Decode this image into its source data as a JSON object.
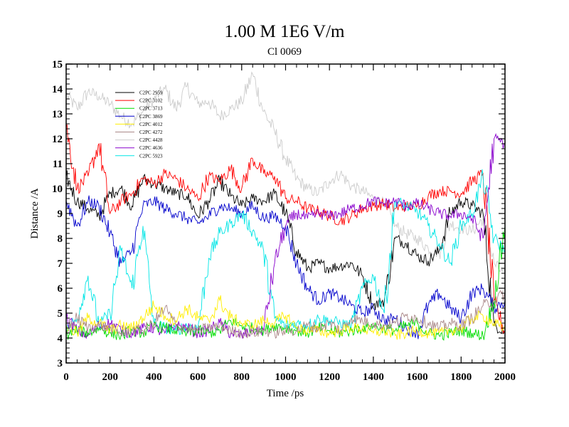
{
  "chart_data": {
    "type": "line",
    "title": "1.00 M 1E6 V/m",
    "subtitle": "Cl 0069",
    "xlabel": "Time /ps",
    "ylabel": "Distance /A",
    "xlim": [
      0,
      2000
    ],
    "ylim": [
      3,
      15
    ],
    "xticks": [
      0,
      200,
      400,
      600,
      800,
      1000,
      1200,
      1400,
      1600,
      1800,
      2000
    ],
    "yticks": [
      3,
      4,
      5,
      6,
      7,
      8,
      9,
      10,
      11,
      12,
      13,
      14,
      15
    ],
    "grid": false,
    "legend_position": "top-left",
    "series": [
      {
        "name": "C2PC 2959",
        "color": "#000000",
        "x": [
          0,
          50,
          100,
          150,
          200,
          250,
          300,
          350,
          400,
          450,
          500,
          550,
          600,
          650,
          700,
          750,
          800,
          850,
          900,
          950,
          1000,
          1050,
          1100,
          1150,
          1200,
          1250,
          1300,
          1350,
          1400,
          1450,
          1500,
          1550,
          1600,
          1650,
          1700,
          1750,
          1800,
          1850,
          1900,
          1950,
          2000
        ],
        "y": [
          10.5,
          9.5,
          9.2,
          8.9,
          9.8,
          10.0,
          9.3,
          10.4,
          10.2,
          10.0,
          9.8,
          9.7,
          8.9,
          9.5,
          10.3,
          9.7,
          9.3,
          9.6,
          9.5,
          9.8,
          9.0,
          7.5,
          6.8,
          7.0,
          6.8,
          6.9,
          7.0,
          6.5,
          5.3,
          5.5,
          8.0,
          7.8,
          7.3,
          7.1,
          7.5,
          9.0,
          9.5,
          9.3,
          9.0,
          4.5,
          4.3
        ]
      },
      {
        "name": "C2PC 3102",
        "color": "#ff0000",
        "x": [
          0,
          50,
          100,
          150,
          200,
          250,
          300,
          350,
          400,
          450,
          500,
          550,
          600,
          650,
          700,
          750,
          800,
          850,
          900,
          950,
          1000,
          1050,
          1100,
          1150,
          1200,
          1250,
          1300,
          1350,
          1400,
          1450,
          1500,
          1550,
          1600,
          1650,
          1700,
          1750,
          1800,
          1850,
          1900,
          1950,
          2000
        ],
        "y": [
          12.5,
          10.0,
          10.5,
          11.8,
          9.0,
          9.5,
          9.8,
          10.4,
          10.2,
          10.6,
          10.4,
          10.0,
          9.6,
          10.5,
          10.3,
          10.8,
          10.0,
          11.2,
          10.6,
          10.5,
          9.6,
          9.5,
          9.2,
          9.1,
          8.9,
          8.7,
          8.9,
          9.2,
          9.3,
          9.4,
          9.2,
          9.3,
          9.3,
          9.7,
          9.9,
          9.9,
          9.8,
          10.3,
          10.6,
          5.5,
          4.2
        ]
      },
      {
        "name": "C2PC 3713",
        "color": "#00dd00",
        "x": [
          0,
          50,
          100,
          150,
          200,
          250,
          300,
          350,
          400,
          450,
          500,
          550,
          600,
          650,
          700,
          750,
          800,
          850,
          900,
          950,
          1000,
          1050,
          1100,
          1150,
          1200,
          1250,
          1300,
          1350,
          1400,
          1450,
          1500,
          1550,
          1600,
          1650,
          1700,
          1750,
          1800,
          1850,
          1900,
          1950,
          2000
        ],
        "y": [
          4.1,
          4.3,
          4.2,
          4.4,
          4.2,
          4.1,
          4.3,
          4.2,
          4.5,
          4.4,
          4.3,
          4.2,
          4.3,
          4.2,
          4.3,
          4.7,
          4.5,
          4.4,
          4.3,
          4.5,
          4.4,
          4.3,
          4.2,
          4.4,
          4.3,
          4.2,
          4.3,
          4.4,
          4.5,
          4.4,
          4.3,
          4.5,
          4.6,
          4.2,
          4.1,
          4.2,
          4.3,
          4.2,
          4.1,
          5.5,
          8.5
        ]
      },
      {
        "name": "C2PC 3869",
        "color": "#0000cc",
        "x": [
          0,
          50,
          100,
          150,
          200,
          250,
          300,
          350,
          400,
          450,
          500,
          550,
          600,
          650,
          700,
          750,
          800,
          850,
          900,
          950,
          1000,
          1050,
          1100,
          1150,
          1200,
          1250,
          1300,
          1350,
          1400,
          1450,
          1500,
          1550,
          1600,
          1650,
          1700,
          1750,
          1800,
          1850,
          1900,
          1950,
          2000
        ],
        "y": [
          9.5,
          8.5,
          9.5,
          9.3,
          8.2,
          7.0,
          7.5,
          9.3,
          9.5,
          9.2,
          9.0,
          8.8,
          8.6,
          8.9,
          9.3,
          9.2,
          9.0,
          9.3,
          8.8,
          8.9,
          8.5,
          7.0,
          6.0,
          5.5,
          5.8,
          5.6,
          5.3,
          5.0,
          5.2,
          4.7,
          4.8,
          4.4,
          4.2,
          5.3,
          5.8,
          5.2,
          4.8,
          5.8,
          6.0,
          5.2,
          5.5
        ]
      },
      {
        "name": "C2PC 4012",
        "color": "#ffee00",
        "x": [
          0,
          50,
          100,
          150,
          200,
          250,
          300,
          350,
          400,
          450,
          500,
          550,
          600,
          650,
          700,
          750,
          800,
          850,
          900,
          950,
          1000,
          1050,
          1100,
          1150,
          1200,
          1250,
          1300,
          1350,
          1400,
          1450,
          1500,
          1550,
          1600,
          1650,
          1700,
          1750,
          1800,
          1850,
          1900,
          1950,
          2000
        ],
        "y": [
          4.5,
          4.2,
          4.8,
          4.6,
          4.3,
          4.5,
          4.4,
          4.8,
          5.3,
          4.9,
          4.7,
          5.2,
          4.8,
          4.7,
          5.5,
          4.8,
          4.6,
          4.5,
          4.7,
          4.6,
          4.9,
          4.4,
          4.3,
          4.3,
          4.2,
          4.3,
          4.4,
          4.4,
          4.2,
          4.3,
          4.1,
          4.2,
          4.3,
          4.2,
          4.2,
          4.3,
          4.4,
          4.8,
          4.9,
          4.6,
          4.3
        ]
      },
      {
        "name": "C2PC 4272",
        "color": "#aa8888",
        "x": [
          0,
          50,
          100,
          150,
          200,
          250,
          300,
          350,
          400,
          450,
          500,
          550,
          600,
          650,
          700,
          750,
          800,
          850,
          900,
          950,
          1000,
          1050,
          1100,
          1150,
          1200,
          1250,
          1300,
          1350,
          1400,
          1450,
          1500,
          1550,
          1600,
          1650,
          1700,
          1750,
          1800,
          1850,
          1900,
          1950,
          2000
        ],
        "y": [
          4.3,
          4.8,
          4.4,
          4.5,
          4.4,
          4.2,
          4.3,
          4.3,
          4.6,
          5.2,
          4.5,
          4.4,
          4.3,
          4.4,
          4.5,
          4.3,
          4.2,
          4.2,
          4.3,
          4.2,
          4.3,
          4.3,
          4.5,
          4.4,
          4.6,
          4.3,
          4.8,
          4.7,
          4.6,
          4.5,
          4.6,
          4.9,
          4.8,
          4.6,
          4.4,
          4.6,
          4.5,
          4.8,
          5.3,
          5.5,
          5.8
        ]
      },
      {
        "name": "C2PC 4428",
        "color": "#cccccc",
        "x": [
          0,
          50,
          100,
          150,
          200,
          250,
          300,
          350,
          400,
          450,
          500,
          550,
          600,
          650,
          700,
          750,
          800,
          850,
          900,
          950,
          1000,
          1050,
          1100,
          1150,
          1200,
          1250,
          1300,
          1350,
          1400,
          1450,
          1500,
          1550,
          1600,
          1650,
          1700,
          1750,
          1800,
          1850,
          1900,
          1950,
          2000
        ],
        "y": [
          13.8,
          13.2,
          13.9,
          13.7,
          13.4,
          12.9,
          12.6,
          13.1,
          13.6,
          14.0,
          13.2,
          14.1,
          13.4,
          13.5,
          12.9,
          13.2,
          13.5,
          14.6,
          13.1,
          12.3,
          11.2,
          10.4,
          10.0,
          9.8,
          10.3,
          10.6,
          10.1,
          9.9,
          9.6,
          9.4,
          8.5,
          8.2,
          8.0,
          7.6,
          7.4,
          8.6,
          8.4,
          8.3,
          8.8,
          7.0,
          6.5
        ]
      },
      {
        "name": "C2PC 4636",
        "color": "#8800cc",
        "x": [
          0,
          50,
          100,
          150,
          200,
          250,
          300,
          350,
          400,
          450,
          500,
          550,
          600,
          650,
          700,
          750,
          800,
          850,
          900,
          950,
          1000,
          1050,
          1100,
          1150,
          1200,
          1250,
          1300,
          1350,
          1400,
          1450,
          1500,
          1550,
          1600,
          1650,
          1700,
          1750,
          1800,
          1850,
          1900,
          1950,
          2000
        ],
        "y": [
          4.8,
          4.3,
          4.1,
          4.5,
          4.6,
          4.3,
          4.2,
          4.4,
          4.4,
          4.2,
          4.5,
          4.4,
          4.2,
          4.3,
          4.6,
          4.2,
          4.1,
          4.3,
          4.3,
          7.0,
          8.5,
          9.0,
          8.8,
          9.0,
          8.9,
          9.0,
          9.2,
          9.3,
          9.5,
          9.4,
          9.5,
          9.3,
          9.4,
          9.2,
          9.0,
          8.9,
          9.0,
          8.8,
          8.0,
          12.0,
          11.8
        ]
      },
      {
        "name": "C2PC 5923",
        "color": "#00e5e5",
        "x": [
          0,
          50,
          100,
          150,
          200,
          250,
          300,
          350,
          400,
          450,
          500,
          550,
          600,
          650,
          700,
          750,
          800,
          850,
          900,
          950,
          1000,
          1050,
          1100,
          1150,
          1200,
          1250,
          1300,
          1350,
          1400,
          1450,
          1500,
          1550,
          1600,
          1650,
          1700,
          1750,
          1800,
          1850,
          1900,
          1950,
          2000
        ],
        "y": [
          4.3,
          4.8,
          6.5,
          4.5,
          5.0,
          7.5,
          6.0,
          8.5,
          4.6,
          4.4,
          4.3,
          4.5,
          4.4,
          7.2,
          8.2,
          8.6,
          9.0,
          8.3,
          7.5,
          4.8,
          4.5,
          4.6,
          4.5,
          4.8,
          4.7,
          4.6,
          4.5,
          6.0,
          6.5,
          5.0,
          9.5,
          9.3,
          9.1,
          8.5,
          7.8,
          7.0,
          8.5,
          9.0,
          10.5,
          8.0,
          7.5
        ]
      }
    ]
  }
}
